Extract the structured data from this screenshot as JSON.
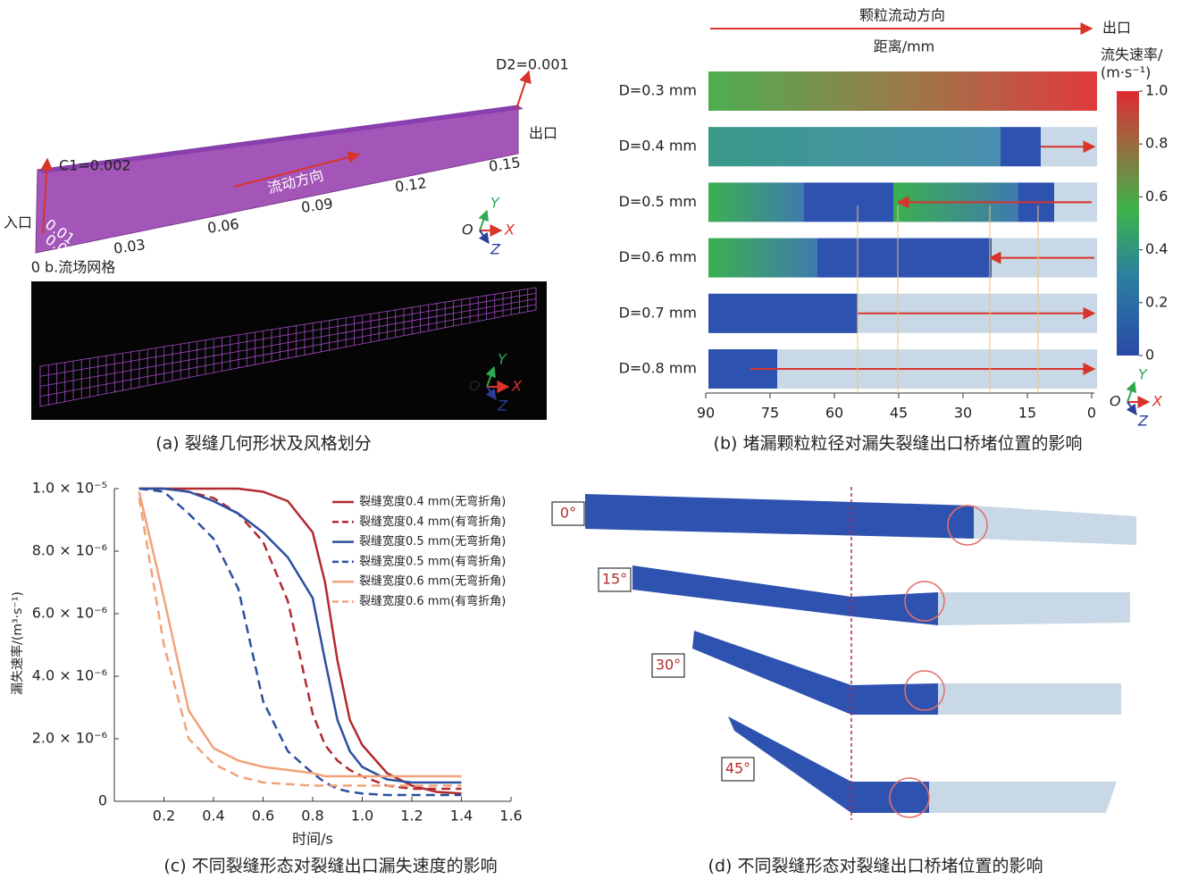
{
  "panel_a": {
    "caption": "(a) 裂缝几何形状及风格划分",
    "outlet_height": "D2=0.001",
    "outlet": "出口",
    "inlet_height": "C1=0.002",
    "inlet": "入口",
    "flow_direction": "流动方向",
    "length_ticks": [
      0,
      0.03,
      0.06,
      0.09,
      0.12,
      0.15
    ],
    "width_ticks": [
      0.01,
      {
        "value": 0,
        "label": "0.00"
      }
    ],
    "mesh_title": "b.流场网格"
  },
  "axis_labels": {
    "origin": "O",
    "x": "X",
    "y": "Y",
    "z": "Z"
  },
  "panel_b": {
    "caption": "(b) 堵漏颗粒粒径对漏失裂缝出口桥堵位置的影响",
    "flow_direction": "颗粒流动方向",
    "outlet": "出口",
    "xlabel": "距离/mm",
    "xlim": [
      90,
      0
    ],
    "xticks": [
      90,
      75,
      60,
      45,
      30,
      15,
      0
    ],
    "rows": [
      "D=0.3 mm",
      "D=0.4 mm",
      "D=0.5 mm",
      "D=0.6 mm",
      "D=0.7 mm",
      "D=0.8 mm"
    ],
    "colorbar": {
      "title": [
        "流失速率/",
        "(m·s⁻¹)"
      ],
      "lim": [
        0,
        1
      ],
      "ticks": [
        {
          "value": 1,
          "label": "1.0"
        },
        0.8,
        0.6,
        0.4,
        0.2,
        0
      ]
    }
  },
  "chart_data": {
    "type": "line",
    "caption": "(c) 不同裂缝形态对裂缝出口漏失速度的影响",
    "xlabel": "时间/s",
    "ylabel": "漏失速率/(m³·s⁻¹)",
    "xlim": [
      0,
      1.6
    ],
    "xticks": [
      0.2,
      0.4,
      0.6,
      0.8,
      {
        "value": 1,
        "label": "1.0"
      },
      1.2,
      1.4,
      1.6
    ],
    "ylim": [
      0,
      1e-05
    ],
    "yticks": [
      0,
      {
        "value": 2e-06,
        "label": "2.0 × 10⁻⁶"
      },
      {
        "value": 4e-06,
        "label": "4.0 × 10⁻⁶"
      },
      {
        "value": 6e-06,
        "label": "6.0 × 10⁻⁶"
      },
      {
        "value": 8e-06,
        "label": "8.0 × 10⁻⁶"
      },
      {
        "value": 1e-05,
        "label": "1.0 × 10⁻⁵"
      }
    ],
    "legend": "upper right",
    "x": [
      0.1,
      0.2,
      0.3,
      0.4,
      0.5,
      0.6,
      0.7,
      0.8,
      0.85,
      0.9,
      0.95,
      1.0,
      1.1,
      1.2,
      1.3,
      1.4
    ],
    "series": [
      {
        "name": "裂缝宽度0.4 mm(无弯折角)",
        "color": "#b22a2e",
        "linestyle": "solid",
        "values": [
          1e-05,
          1e-05,
          1e-05,
          1e-05,
          1e-05,
          9.9e-06,
          9.6e-06,
          8.6e-06,
          7e-06,
          4.5e-06,
          2.6e-06,
          1.8e-06,
          9e-07,
          5e-07,
          3e-07,
          2.5e-07
        ]
      },
      {
        "name": "裂缝宽度0.4 mm(有弯折角)",
        "color": "#b22a2e",
        "linestyle": "dashed",
        "values": [
          1e-05,
          1e-05,
          9.9e-06,
          9.7e-06,
          9.2e-06,
          8.3e-06,
          6.4e-06,
          2.8e-06,
          1.8e-06,
          1.3e-06,
          1e-06,
          8e-07,
          5e-07,
          4e-07,
          4e-07,
          4e-07
        ]
      },
      {
        "name": "裂缝宽度0.5 mm(无弯折角)",
        "color": "#2c4fa0",
        "linestyle": "solid",
        "values": [
          1e-05,
          1e-05,
          9.9e-06,
          9.6e-06,
          9.2e-06,
          8.6e-06,
          7.8e-06,
          6.5e-06,
          4.5e-06,
          2.6e-06,
          1.6e-06,
          1.1e-06,
          7e-07,
          6e-07,
          6e-07,
          6e-07
        ]
      },
      {
        "name": "裂缝宽度0.5 mm(有弯折角)",
        "color": "#2c4fa0",
        "linestyle": "dashed",
        "values": [
          1e-05,
          9.9e-06,
          9.2e-06,
          8.4e-06,
          6.8e-06,
          3.2e-06,
          1.6e-06,
          9e-07,
          6e-07,
          4e-07,
          3e-07,
          2.5e-07,
          2e-07,
          2e-07,
          2e-07,
          2e-07
        ]
      },
      {
        "name": "裂缝宽度0.6 mm(无弯折角)",
        "color": "#f0a27a",
        "linestyle": "solid",
        "values": [
          9.9e-06,
          6.5e-06,
          2.9e-06,
          1.7e-06,
          1.3e-06,
          1.1e-06,
          1e-06,
          9e-07,
          8e-07,
          8e-07,
          8e-07,
          8e-07,
          8e-07,
          8e-07,
          8e-07,
          8e-07
        ]
      },
      {
        "name": "裂缝宽度0.6 mm(有弯折角)",
        "color": "#f0a27a",
        "linestyle": "dashed",
        "values": [
          9.7e-06,
          5e-06,
          2e-06,
          1.2e-06,
          8e-07,
          6e-07,
          5.5e-07,
          5e-07,
          5e-07,
          5e-07,
          5e-07,
          5e-07,
          5e-07,
          5e-07,
          5e-07,
          5e-07
        ]
      }
    ]
  },
  "panel_d": {
    "caption": "(d) 不同裂缝形态对裂缝出口桥堵位置的影响",
    "angles": [
      "0°",
      "15°",
      "30°",
      "45°"
    ]
  }
}
